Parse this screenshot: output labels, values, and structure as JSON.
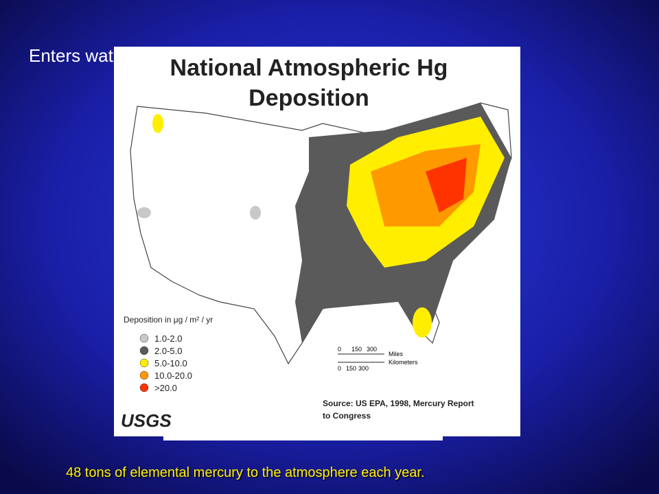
{
  "slide": {
    "title": "Enters water bodies principally from the atmosphere",
    "footer": "48 tons of elemental mercury to the atmosphere each year."
  },
  "map": {
    "title_lines": [
      "National Atmospheric Hg",
      "Deposition"
    ],
    "legend": {
      "title": "Deposition in μg / m² / yr",
      "items": [
        {
          "label": "1.0-2.0",
          "color": "#c8c8c8"
        },
        {
          "label": "2.0-5.0",
          "color": "#5a5a5a"
        },
        {
          "label": "5.0-10.0",
          "color": "#ffee00"
        },
        {
          "label": "10.0-20.0",
          "color": "#ff9900"
        },
        {
          "label": ">20.0",
          "color": "#ff3300"
        }
      ]
    },
    "scale": {
      "miles_ticks": [
        "0",
        "150",
        "300"
      ],
      "miles": "Miles",
      "km_ticks": [
        "0",
        "150",
        "300"
      ],
      "kilometers": "Kilometers"
    },
    "source_lines": [
      "Source:  US EPA, 1998, Mercury Report",
      "to Congress"
    ],
    "logo": "USGS"
  }
}
